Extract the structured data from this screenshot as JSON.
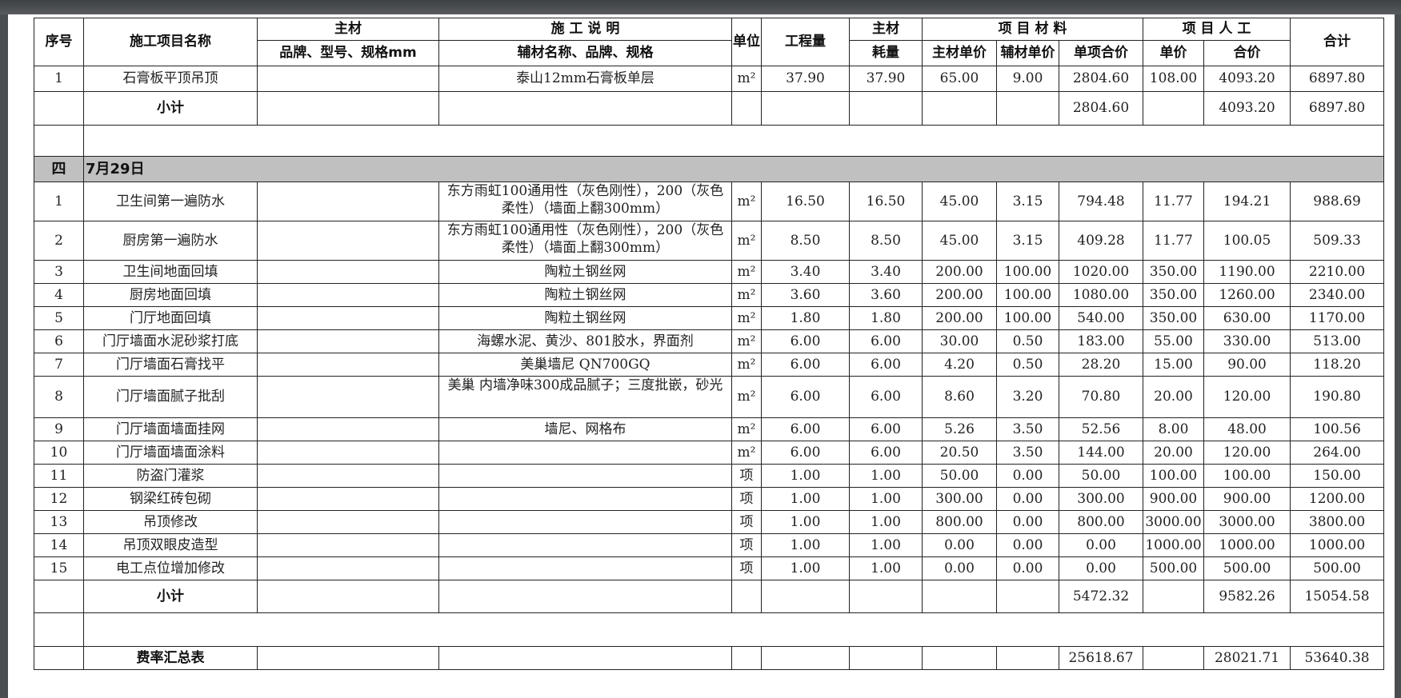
{
  "header": {
    "seq": "序号",
    "name": "施工项目名称",
    "main_material": "主材",
    "main_material_spec": "品牌、型号、规格mm",
    "construction_desc": "施 工 说 明",
    "aux_spec": "辅材名称、品牌、规格",
    "unit": "单位",
    "quantity": "工程量",
    "main_material2": "主材",
    "consumption": "耗量",
    "project_material": "项 目 材 料",
    "main_unit_price": "主材单价",
    "aux_unit_price": "辅材单价",
    "item_total": "单项合价",
    "project_labor": "项 目 人 工",
    "labor_unit_price": "单价",
    "labor_total": "合价",
    "total": "合计"
  },
  "section_prev": {
    "rows": [
      {
        "seq": "1",
        "name": "石膏板平顶吊顶",
        "spec": "",
        "aux": "泰山12mm石膏板单层",
        "unit": "m²",
        "qty": "37.90",
        "consume": "37.90",
        "main_price": "65.00",
        "aux_price": "9.00",
        "item_total": "2804.60",
        "labor_price": "108.00",
        "labor_total": "4093.20",
        "total": "6897.80"
      }
    ],
    "subtotal": {
      "label": "小计",
      "item_total": "2804.60",
      "labor_total": "4093.20",
      "total": "6897.80"
    }
  },
  "section": {
    "number": "四",
    "title": "7月29日",
    "rows": [
      {
        "seq": "1",
        "name": "卫生间第一遍防水",
        "spec": "",
        "aux": "东方雨虹100通用性（灰色刚性），200（灰色柔性）（墙面上翻300mm）",
        "unit": "m²",
        "qty": "16.50",
        "consume": "16.50",
        "main_price": "45.00",
        "aux_price": "3.15",
        "item_total": "794.48",
        "labor_price": "11.77",
        "labor_total": "194.21",
        "total": "988.69"
      },
      {
        "seq": "2",
        "name": "厨房第一遍防水",
        "spec": "",
        "aux": "东方雨虹100通用性（灰色刚性），200（灰色柔性）（墙面上翻300mm）",
        "unit": "m²",
        "qty": "8.50",
        "consume": "8.50",
        "main_price": "45.00",
        "aux_price": "3.15",
        "item_total": "409.28",
        "labor_price": "11.77",
        "labor_total": "100.05",
        "total": "509.33"
      },
      {
        "seq": "3",
        "name": "卫生间地面回填",
        "spec": "",
        "aux": "陶粒土钢丝网",
        "unit": "m²",
        "qty": "3.40",
        "consume": "3.40",
        "main_price": "200.00",
        "aux_price": "100.00",
        "item_total": "1020.00",
        "labor_price": "350.00",
        "labor_total": "1190.00",
        "total": "2210.00"
      },
      {
        "seq": "4",
        "name": "厨房地面回填",
        "spec": "",
        "aux": "陶粒土钢丝网",
        "unit": "m²",
        "qty": "3.60",
        "consume": "3.60",
        "main_price": "200.00",
        "aux_price": "100.00",
        "item_total": "1080.00",
        "labor_price": "350.00",
        "labor_total": "1260.00",
        "total": "2340.00"
      },
      {
        "seq": "5",
        "name": "门厅地面回填",
        "spec": "",
        "aux": "陶粒土钢丝网",
        "unit": "m²",
        "qty": "1.80",
        "consume": "1.80",
        "main_price": "200.00",
        "aux_price": "100.00",
        "item_total": "540.00",
        "labor_price": "350.00",
        "labor_total": "630.00",
        "total": "1170.00"
      },
      {
        "seq": "6",
        "name": "门厅墙面水泥砂浆打底",
        "spec": "",
        "aux": "海螺水泥、黄沙、801胶水，界面剂",
        "unit": "m²",
        "qty": "6.00",
        "consume": "6.00",
        "main_price": "30.00",
        "aux_price": "0.50",
        "item_total": "183.00",
        "labor_price": "55.00",
        "labor_total": "330.00",
        "total": "513.00"
      },
      {
        "seq": "7",
        "name": "门厅墙面石膏找平",
        "spec": "",
        "aux": "美巢墙尼 QN700GQ",
        "unit": "m²",
        "qty": "6.00",
        "consume": "6.00",
        "main_price": "4.20",
        "aux_price": "0.50",
        "item_total": "28.20",
        "labor_price": "15.00",
        "labor_total": "90.00",
        "total": "118.20"
      },
      {
        "seq": "8",
        "name": "门厅墙面腻子批刮",
        "spec": "",
        "aux": "美巢 内墙净味300成品腻子；三度批嵌，砂光",
        "unit": "m²",
        "qty": "6.00",
        "consume": "6.00",
        "main_price": "8.60",
        "aux_price": "3.20",
        "item_total": "70.80",
        "labor_price": "20.00",
        "labor_total": "120.00",
        "total": "190.80"
      },
      {
        "seq": "9",
        "name": "门厅墙面墙面挂网",
        "spec": "",
        "aux": "墙尼、网格布",
        "unit": "m²",
        "qty": "6.00",
        "consume": "6.00",
        "main_price": "5.26",
        "aux_price": "3.50",
        "item_total": "52.56",
        "labor_price": "8.00",
        "labor_total": "48.00",
        "total": "100.56"
      },
      {
        "seq": "10",
        "name": "门厅墙面墙面涂料",
        "spec": "",
        "aux": "",
        "unit": "m²",
        "qty": "6.00",
        "consume": "6.00",
        "main_price": "20.50",
        "aux_price": "3.50",
        "item_total": "144.00",
        "labor_price": "20.00",
        "labor_total": "120.00",
        "total": "264.00"
      },
      {
        "seq": "11",
        "name": "防盗门灌浆",
        "spec": "",
        "aux": "",
        "unit": "项",
        "qty": "1.00",
        "consume": "1.00",
        "main_price": "50.00",
        "aux_price": "0.00",
        "item_total": "50.00",
        "labor_price": "100.00",
        "labor_total": "100.00",
        "total": "150.00"
      },
      {
        "seq": "12",
        "name": "钢梁红砖包砌",
        "spec": "",
        "aux": "",
        "unit": "项",
        "qty": "1.00",
        "consume": "1.00",
        "main_price": "300.00",
        "aux_price": "0.00",
        "item_total": "300.00",
        "labor_price": "900.00",
        "labor_total": "900.00",
        "total": "1200.00"
      },
      {
        "seq": "13",
        "name": "吊顶修改",
        "spec": "",
        "aux": "",
        "unit": "项",
        "qty": "1.00",
        "consume": "1.00",
        "main_price": "800.00",
        "aux_price": "0.00",
        "item_total": "800.00",
        "labor_price": "3000.00",
        "labor_total": "3000.00",
        "total": "3800.00"
      },
      {
        "seq": "14",
        "name": "吊顶双眼皮造型",
        "spec": "",
        "aux": "",
        "unit": "项",
        "qty": "1.00",
        "consume": "1.00",
        "main_price": "0.00",
        "aux_price": "0.00",
        "item_total": "0.00",
        "labor_price": "1000.00",
        "labor_total": "1000.00",
        "total": "1000.00"
      },
      {
        "seq": "15",
        "name": "电工点位增加修改",
        "spec": "",
        "aux": "",
        "unit": "项",
        "qty": "1.00",
        "consume": "1.00",
        "main_price": "0.00",
        "aux_price": "0.00",
        "item_total": "0.00",
        "labor_price": "500.00",
        "labor_total": "500.00",
        "total": "500.00"
      }
    ],
    "subtotal": {
      "label": "小计",
      "item_total": "5472.32",
      "labor_total": "9582.26",
      "total": "15054.58"
    }
  },
  "summary": {
    "label": "费率汇总表",
    "item_total": "25618.67",
    "labor_total": "28021.71",
    "total": "53640.38"
  },
  "colors": {
    "section_bg": "#c0c0c0",
    "frame_bg": "#4b4e51"
  }
}
